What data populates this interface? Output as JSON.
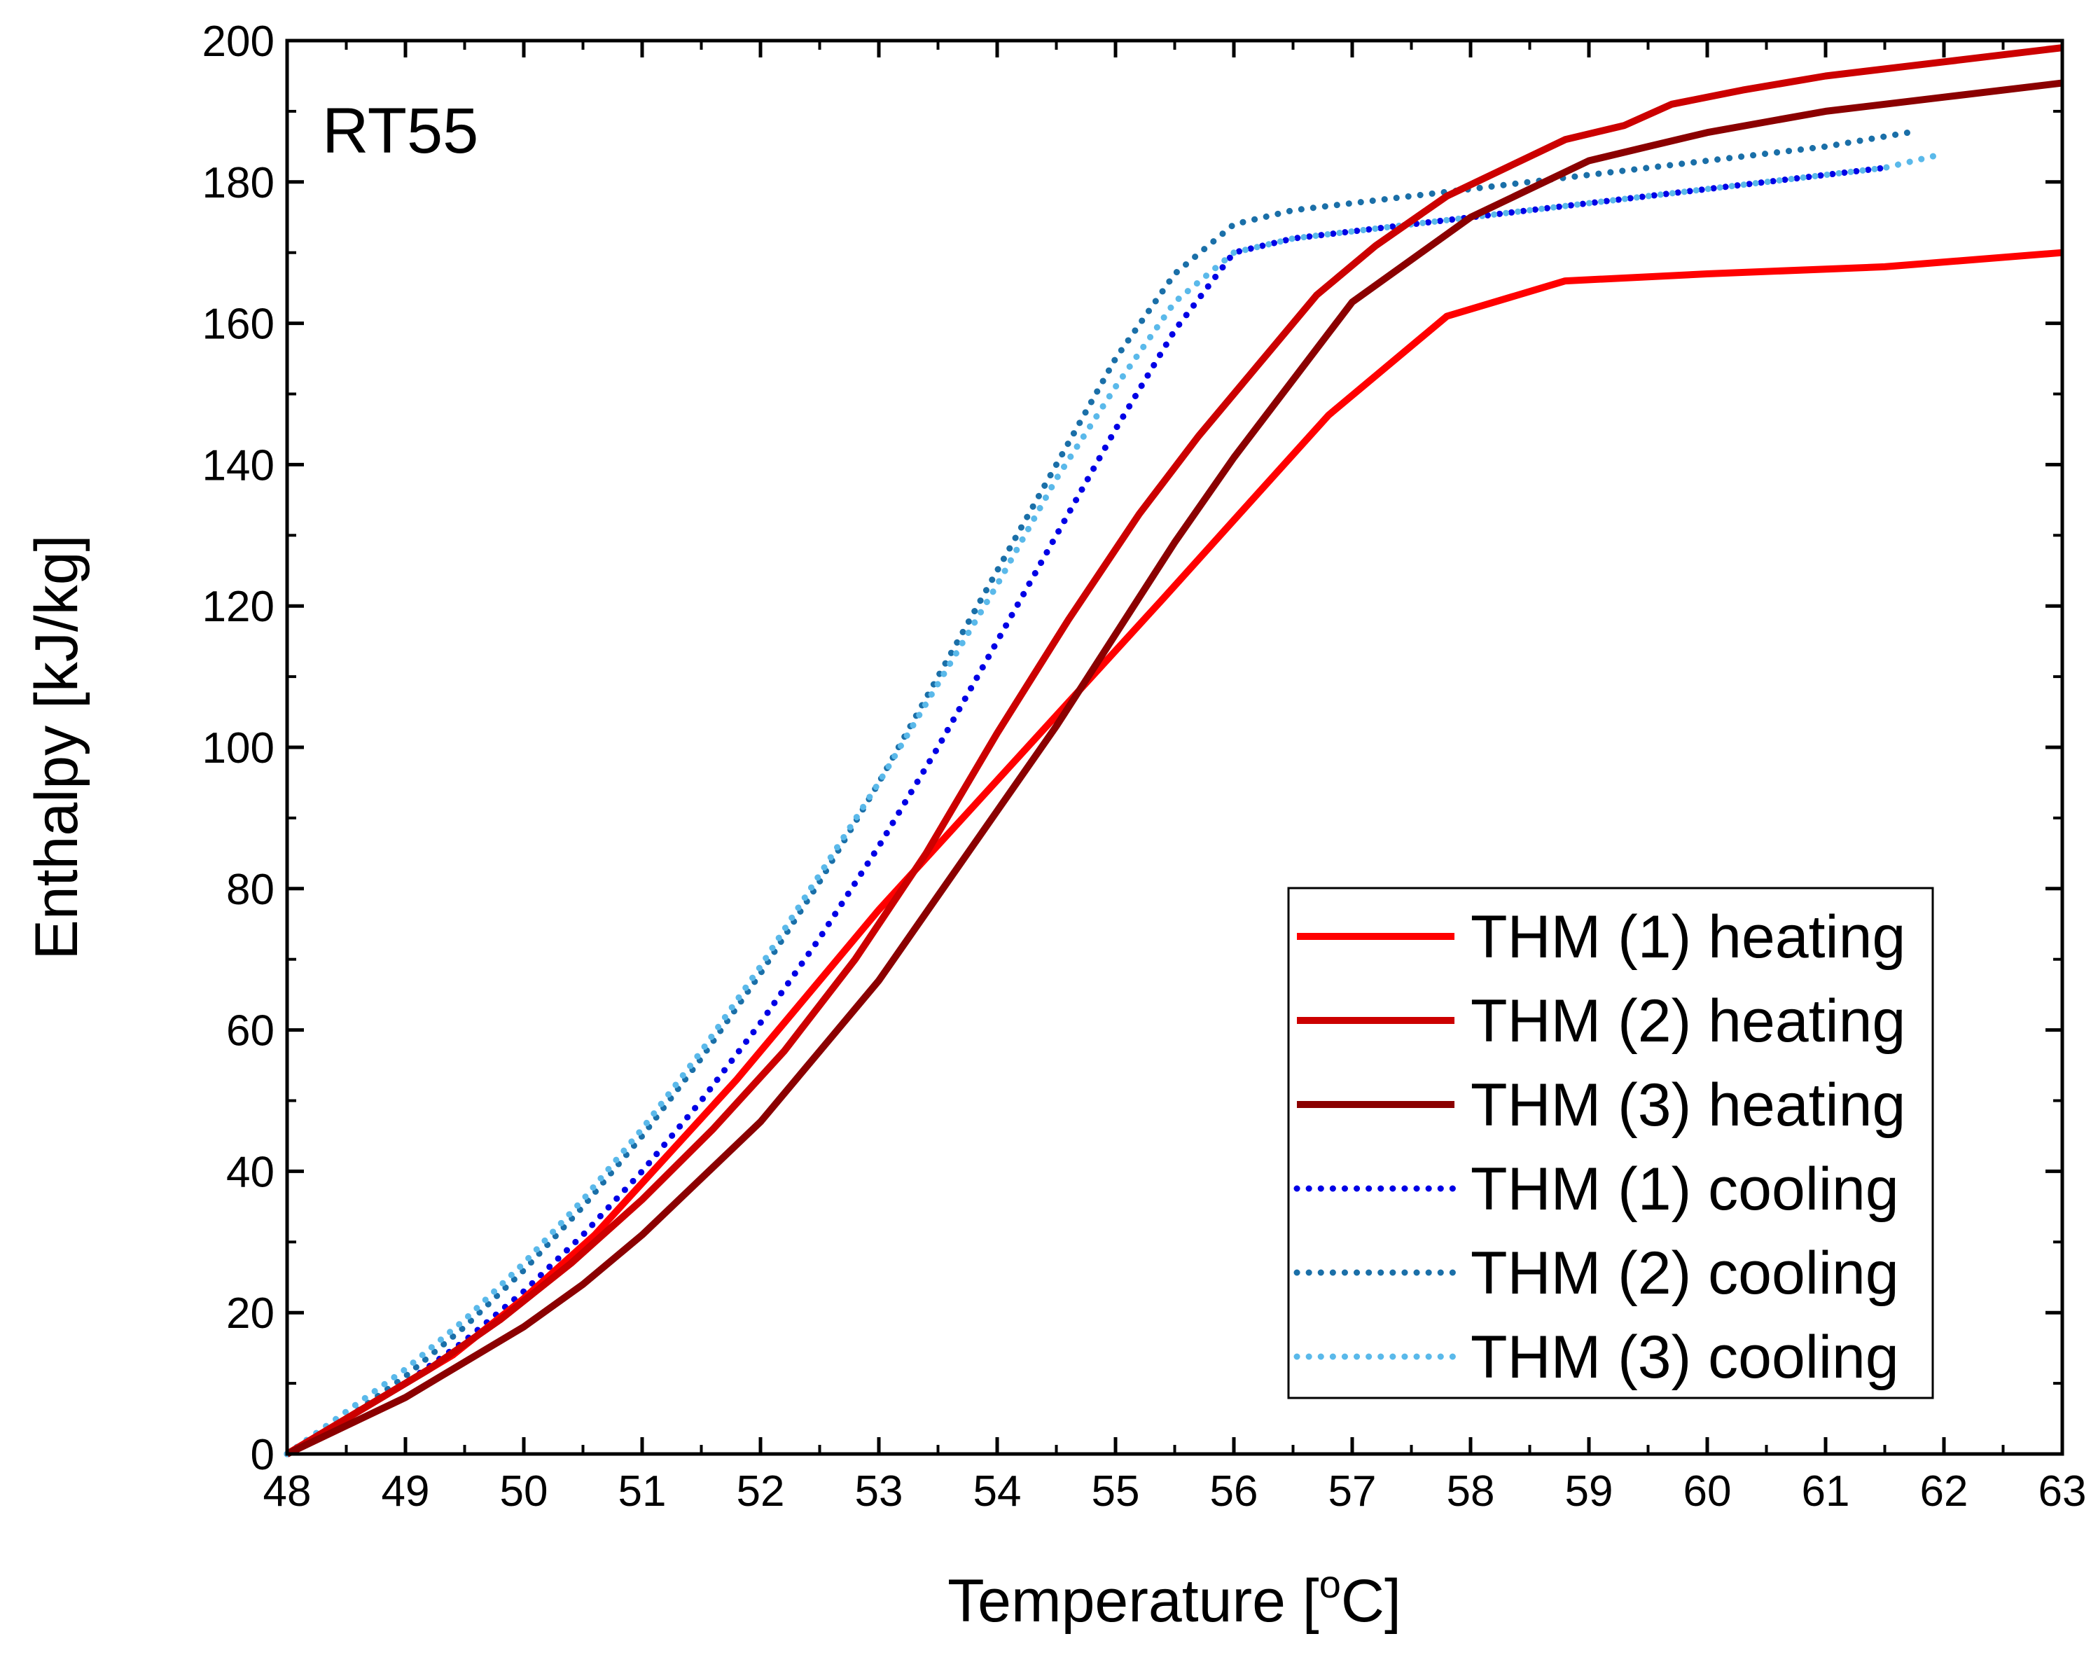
{
  "chart_data": {
    "type": "line",
    "title": "",
    "annotation": "RT55",
    "xlabel": "Temperature [°C]",
    "xlabel_main": "Temperature [",
    "xlabel_superscript": "o",
    "xlabel_unit": "C]",
    "ylabel": "Enthalpy [kJ/kg]",
    "xlim": [
      48,
      63
    ],
    "ylim": [
      0,
      200
    ],
    "xticks": [
      "48",
      "49",
      "50",
      "51",
      "52",
      "53",
      "54",
      "55",
      "56",
      "57",
      "58",
      "59",
      "60",
      "61",
      "62",
      "63"
    ],
    "yticks": [
      "0",
      "20",
      "40",
      "60",
      "80",
      "100",
      "120",
      "140",
      "160",
      "180",
      "200"
    ],
    "grid": false,
    "legend_position": "bottom-right",
    "series": [
      {
        "name": "THM (1) heating",
        "color": "#ff0000",
        "style": "solid",
        "x": [
          48,
          48.7,
          49.4,
          50.0,
          50.6,
          51.2,
          51.8,
          52.4,
          53.0,
          53.6,
          54.2,
          54.8,
          55.4,
          56.1,
          56.8,
          57.8,
          58.8,
          60.0,
          61.5,
          63.0
        ],
        "y": [
          0,
          7,
          14,
          22,
          31,
          42,
          53,
          65,
          77,
          88,
          99,
          110,
          121,
          134,
          147,
          161,
          166,
          167,
          168,
          170
        ]
      },
      {
        "name": "THM (2) heating",
        "color": "#cc0000",
        "style": "solid",
        "x": [
          48,
          48.6,
          49.2,
          49.8,
          50.4,
          51.0,
          51.6,
          52.2,
          52.8,
          53.4,
          54.0,
          54.6,
          55.2,
          55.7,
          56.2,
          56.7,
          57.2,
          57.8,
          58.3,
          58.8,
          59.3,
          59.7,
          60.3,
          61.0,
          62.0,
          63.0
        ],
        "y": [
          0,
          6,
          12,
          19,
          27,
          36,
          46,
          57,
          70,
          85,
          102,
          118,
          133,
          144,
          154,
          164,
          171,
          178,
          182,
          186,
          188,
          191,
          193,
          195,
          197,
          199
        ]
      },
      {
        "name": "THM (3) heating",
        "color": "#8b0000",
        "style": "solid",
        "x": [
          48,
          48.5,
          49.0,
          49.5,
          50.0,
          50.5,
          51.0,
          51.5,
          52.0,
          52.5,
          53.0,
          53.5,
          54.0,
          54.5,
          55.0,
          55.5,
          56.0,
          56.5,
          57.0,
          57.5,
          58.0,
          58.5,
          59.0,
          59.5,
          60.0,
          60.5,
          61.0,
          62.0,
          63.0
        ],
        "y": [
          0,
          4,
          8,
          13,
          18,
          24,
          31,
          39,
          47,
          57,
          67,
          79,
          91,
          103,
          116,
          129,
          141,
          152,
          163,
          169,
          175,
          179,
          183,
          185,
          187,
          188.5,
          190,
          192,
          194
        ]
      },
      {
        "name": "THM (1) cooling",
        "color": "#0000e6",
        "style": "dotted",
        "x": [
          48,
          48.5,
          49.0,
          49.5,
          50.0,
          50.5,
          51.0,
          51.5,
          52.0,
          52.5,
          53.0,
          53.5,
          54.0,
          54.5,
          55.0,
          55.5,
          56.0,
          56.5,
          57.0,
          57.5,
          58.0,
          58.5,
          59.0,
          59.5,
          60.0,
          60.5,
          61.0,
          61.5
        ],
        "y": [
          0,
          5,
          10,
          16,
          23,
          31,
          40,
          50,
          61,
          73,
          86,
          100,
          115,
          130,
          145,
          159,
          170,
          172,
          173,
          174,
          175,
          176,
          177,
          178,
          179,
          180,
          181,
          182
        ]
      },
      {
        "name": "THM (2) cooling",
        "color": "#1a6fa8",
        "style": "dotted",
        "x": [
          48,
          48.5,
          49.0,
          49.5,
          50.0,
          50.5,
          51.0,
          51.5,
          52.0,
          52.5,
          53.0,
          53.5,
          54.0,
          54.5,
          55.0,
          55.5,
          56.0,
          56.5,
          57.0,
          57.5,
          58.0,
          58.5,
          59.0,
          59.5,
          60.0,
          60.5,
          61.0,
          61.7
        ],
        "y": [
          0,
          5,
          11,
          18,
          26,
          35,
          45,
          56,
          68,
          81,
          95,
          110,
          125,
          140,
          155,
          167,
          174,
          176,
          177,
          178,
          179,
          180,
          181,
          182,
          183,
          184,
          185,
          187
        ]
      },
      {
        "name": "THM (3) cooling",
        "color": "#5ab9ea",
        "style": "dotted",
        "x": [
          48,
          48.5,
          49.0,
          49.5,
          50.0,
          50.5,
          51.0,
          51.5,
          52.0,
          52.5,
          53.0,
          53.5,
          54.0,
          54.5,
          55.0,
          55.5,
          56.0,
          56.5,
          57.0,
          57.5,
          58.0,
          58.5,
          59.0,
          59.5,
          60.0,
          60.5,
          61.0,
          61.5,
          62.0
        ],
        "y": [
          0,
          6,
          12,
          19,
          27,
          36,
          46,
          57,
          69,
          82,
          95,
          109,
          123,
          138,
          151,
          163,
          170,
          172,
          173,
          174,
          175,
          176,
          177,
          178,
          179,
          180,
          181,
          182,
          184
        ]
      }
    ]
  }
}
